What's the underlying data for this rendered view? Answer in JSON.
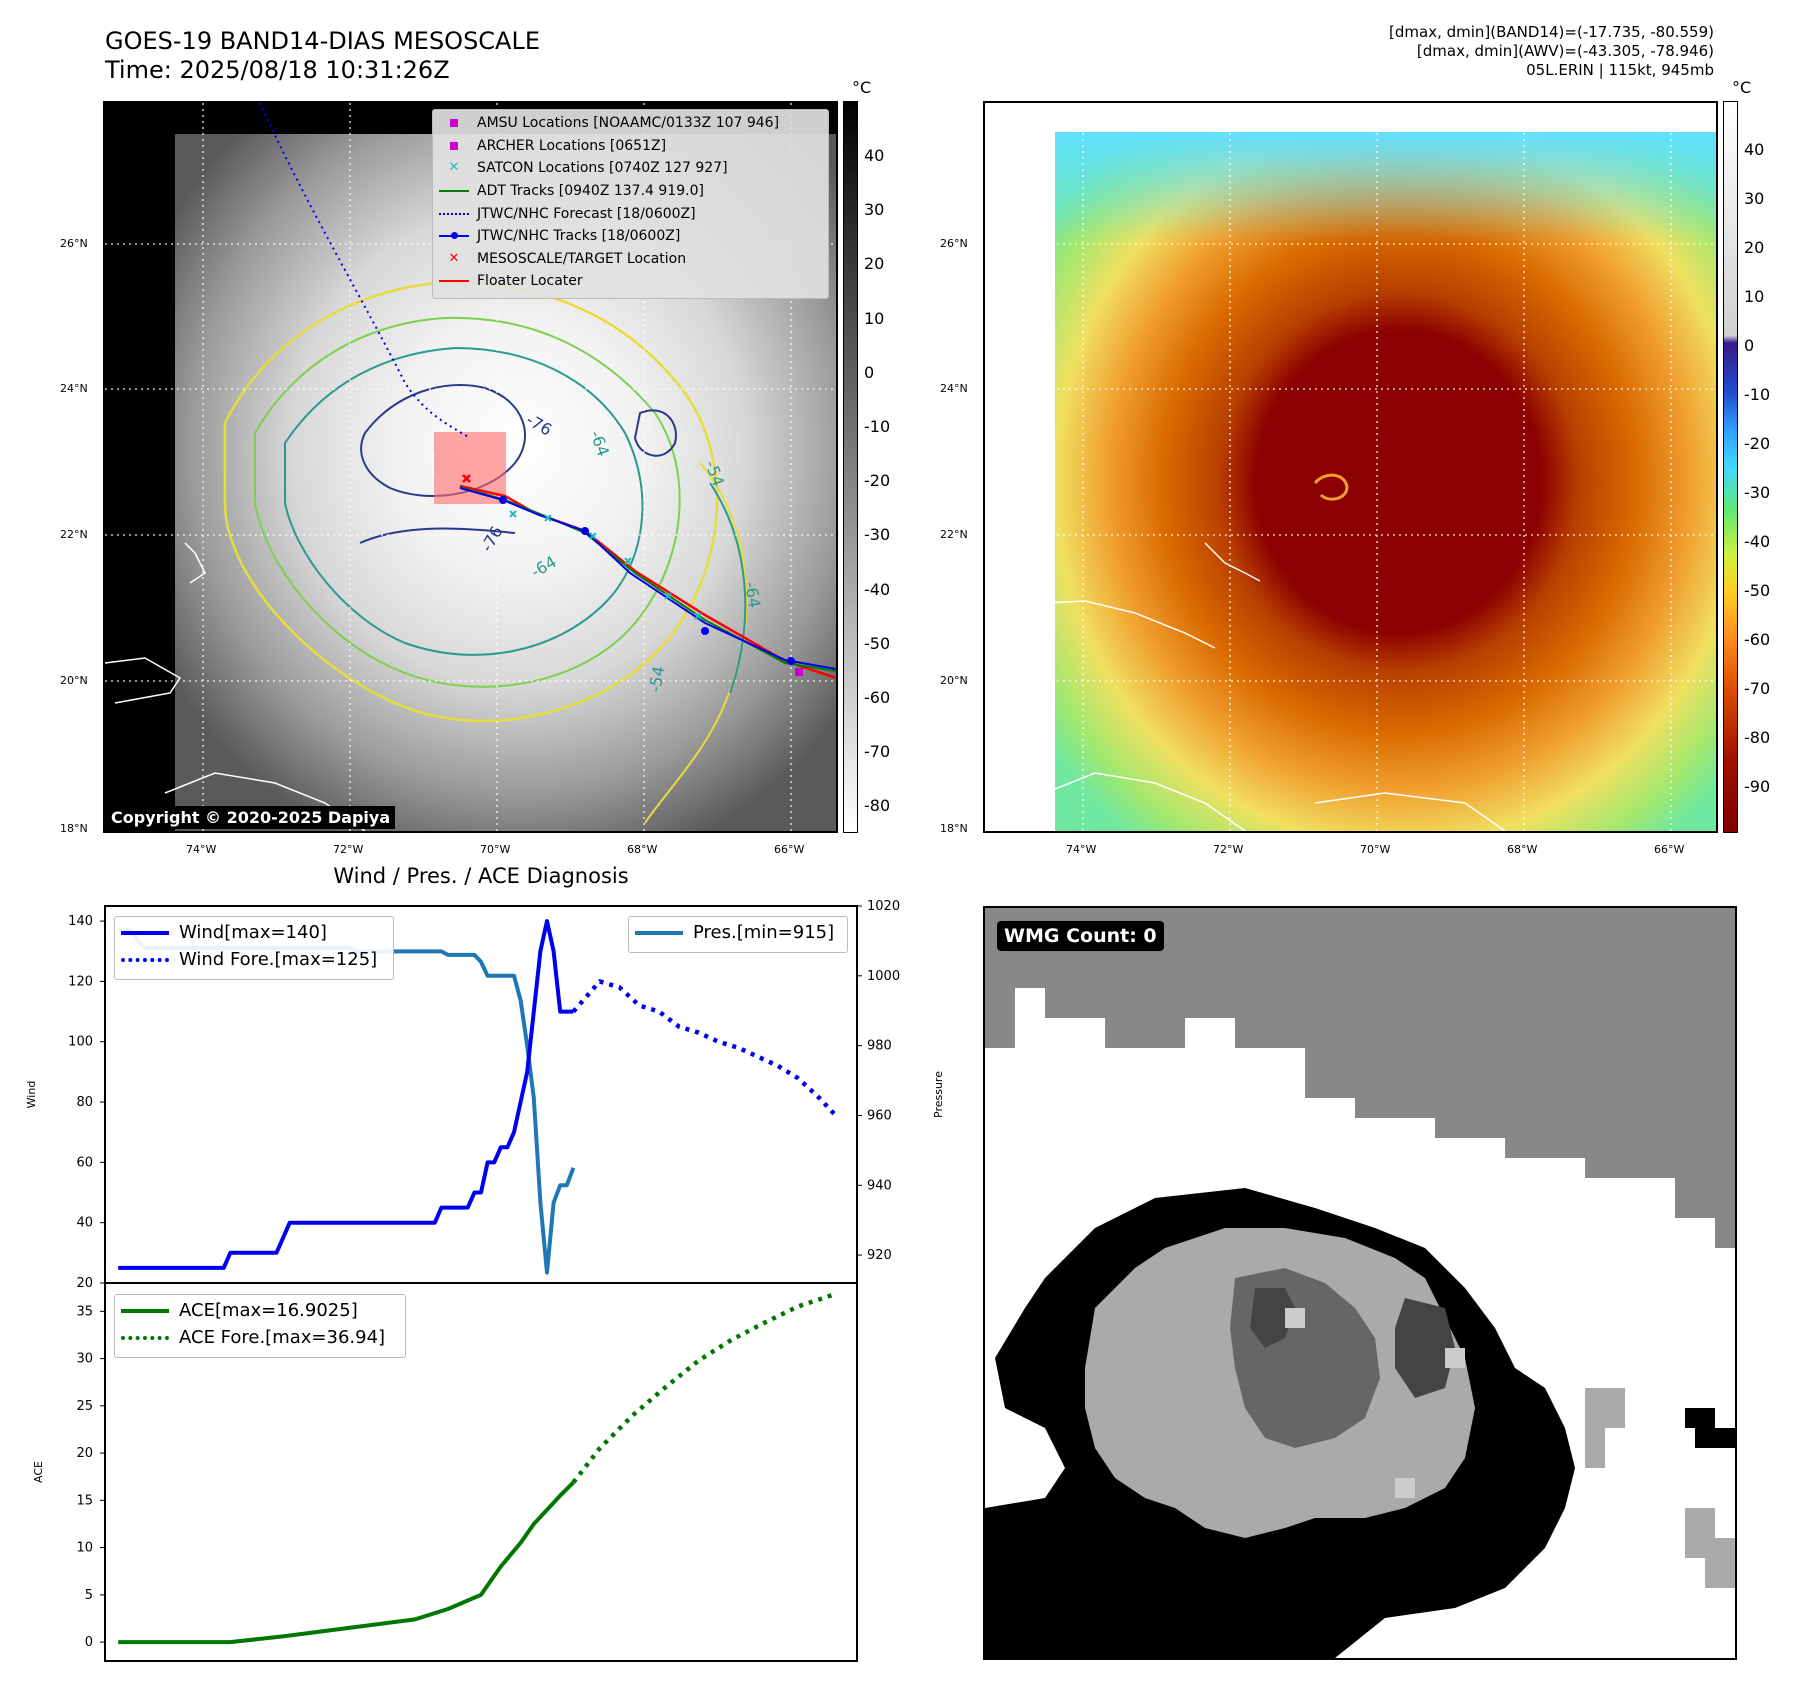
{
  "header": {
    "title_line1": "GOES-19 BAND14-DIAS MESOSCALE",
    "title_line2": "Time: 2025/08/18 10:31:26Z",
    "info_line1": "[dmax, dmin](BAND14)=(-17.735, -80.559)",
    "info_line2": "[dmax, dmin](AWV)=(-43.305, -78.946)",
    "info_line3": "05L.ERIN | 115kt, 945mb"
  },
  "map": {
    "lon_ticks": [
      "74°W",
      "72°W",
      "70°W",
      "68°W",
      "66°W"
    ],
    "lat_ticks": [
      "26°N",
      "24°N",
      "22°N",
      "20°N",
      "18°N"
    ],
    "contour_labels": [
      "-76",
      "-64",
      "-54",
      "-76",
      "-64",
      "-54",
      "-64"
    ],
    "copyright": "Copyright © 2020-2025 Dapiya",
    "colorbar_unit": "°C",
    "legend": [
      {
        "label": "AMSU Locations [NOAAMC/0133Z 107 946]",
        "color": "#cc00cc",
        "symbol": "square"
      },
      {
        "label": "ARCHER Locations [0651Z]",
        "color": "#cc00cc",
        "symbol": "square"
      },
      {
        "label": "SATCON Locations [0740Z 127 927]",
        "color": "#22bbbb",
        "symbol": "x"
      },
      {
        "label": "ADT Tracks [0940Z 137.4 919.0]",
        "color": "#008000",
        "symbol": "line"
      },
      {
        "label": "JTWC/NHC Forecast [18/0600Z]",
        "color": "#0000ee",
        "symbol": "dotted"
      },
      {
        "label": "JTWC/NHC Tracks [18/0600Z]",
        "color": "#0000ee",
        "symbol": "line-dot"
      },
      {
        "label": "MESOSCALE/TARGET Location",
        "color": "#ff0000",
        "symbol": "x"
      },
      {
        "label": "Floater Locater",
        "color": "#ff0000",
        "symbol": "line"
      }
    ],
    "gray_colorbar_ticks": [
      40,
      30,
      20,
      10,
      0,
      -10,
      -20,
      -30,
      -40,
      -50,
      -60,
      -70,
      -80
    ],
    "color_colorbar_ticks": [
      40,
      30,
      20,
      10,
      0,
      -10,
      -20,
      -30,
      -40,
      -50,
      -60,
      -70,
      -80,
      -90
    ]
  },
  "diagnosis_title": "Wind / Pres. / ACE Diagnosis",
  "wmg_label": "WMG Count: 0",
  "chart_data": [
    {
      "type": "line",
      "title": "Wind / Pres. / ACE Diagnosis",
      "ylabel": "Wind",
      "y2label": "Pressure",
      "ylim": [
        20,
        145
      ],
      "y2lim": [
        912,
        1020
      ],
      "yticks": [
        20,
        40,
        60,
        80,
        100,
        120,
        140
      ],
      "y2ticks": [
        920,
        940,
        960,
        980,
        1000,
        1020
      ],
      "series": [
        {
          "name": "Wind[max=140]",
          "axis": "left",
          "style": "solid",
          "color": "#0000ee",
          "x": [
            0,
            1,
            2,
            3,
            4,
            5,
            6,
            7,
            8,
            9,
            10,
            11,
            12,
            13,
            14,
            15,
            16,
            17,
            18,
            19,
            20,
            21,
            22,
            23,
            24,
            25,
            26,
            27,
            28,
            29,
            30,
            31,
            32,
            33,
            34,
            35,
            36,
            37,
            38,
            39,
            40,
            41,
            42,
            43,
            44,
            45,
            46,
            47,
            48,
            49,
            50,
            51,
            52,
            53,
            54,
            55,
            56,
            57,
            58,
            59,
            60,
            61,
            62,
            63,
            64,
            65,
            66,
            67,
            68,
            69
          ],
          "values": [
            25,
            25,
            25,
            25,
            25,
            25,
            25,
            25,
            25,
            25,
            25,
            25,
            25,
            25,
            25,
            25,
            25,
            30,
            30,
            30,
            30,
            30,
            30,
            30,
            30,
            35,
            40,
            40,
            40,
            40,
            40,
            40,
            40,
            40,
            40,
            40,
            40,
            40,
            40,
            40,
            40,
            40,
            40,
            40,
            40,
            40,
            40,
            40,
            40,
            45,
            45,
            45,
            45,
            45,
            50,
            50,
            60,
            60,
            65,
            65,
            70,
            80,
            90,
            110,
            130,
            140,
            130,
            110,
            110,
            110
          ]
        },
        {
          "name": "Wind Fore.[max=125]",
          "axis": "left",
          "style": "dotted",
          "color": "#0000ee",
          "x": [
            69,
            71,
            73,
            76,
            79,
            82,
            85,
            88,
            91,
            94,
            97,
            100,
            103,
            106,
            109
          ],
          "values": [
            110,
            115,
            120,
            118,
            112,
            110,
            105,
            103,
            100,
            98,
            95,
            92,
            88,
            82,
            75
          ]
        },
        {
          "name": "Pres.[min=915]",
          "axis": "right",
          "style": "solid",
          "color": "#1f77b4",
          "x": [
            0,
            1,
            2,
            3,
            4,
            5,
            6,
            7,
            8,
            9,
            10,
            11,
            12,
            13,
            14,
            15,
            16,
            17,
            18,
            19,
            20,
            21,
            22,
            23,
            24,
            25,
            26,
            27,
            28,
            29,
            30,
            31,
            32,
            33,
            34,
            35,
            36,
            37,
            38,
            39,
            40,
            41,
            42,
            43,
            44,
            45,
            46,
            47,
            48,
            49,
            50,
            51,
            52,
            53,
            54,
            55,
            56,
            57,
            58,
            59,
            60,
            61,
            62,
            63,
            64,
            65,
            66,
            67,
            68,
            69
          ],
          "values": [
            1013,
            1013,
            1013,
            1010,
            1008,
            1008,
            1008,
            1008,
            1008,
            1008,
            1008,
            1008,
            1008,
            1008,
            1008,
            1008,
            1008,
            1008,
            1008,
            1008,
            1008,
            1008,
            1008,
            1008,
            1008,
            1008,
            1008,
            1008,
            1008,
            1008,
            1008,
            1008,
            1008,
            1008,
            1008,
            1008,
            1007,
            1007,
            1007,
            1007,
            1007,
            1007,
            1007,
            1007,
            1007,
            1007,
            1007,
            1007,
            1007,
            1007,
            1006,
            1006,
            1006,
            1006,
            1006,
            1004,
            1000,
            1000,
            1000,
            1000,
            1000,
            993,
            980,
            965,
            935,
            915,
            935,
            940,
            940,
            945
          ]
        }
      ]
    },
    {
      "type": "line",
      "ylabel": "ACE",
      "ylim": [
        -2,
        38
      ],
      "yticks": [
        0,
        5,
        10,
        15,
        20,
        25,
        30,
        35
      ],
      "series": [
        {
          "name": "ACE[max=16.9025]",
          "style": "solid",
          "color": "#007700",
          "x": [
            0,
            17,
            25,
            35,
            45,
            50,
            55,
            58,
            61,
            63,
            65,
            67,
            69
          ],
          "values": [
            0,
            0,
            0.6,
            1.5,
            2.4,
            3.5,
            5,
            8,
            10.5,
            12.5,
            14,
            15.5,
            16.9
          ]
        },
        {
          "name": "ACE Fore.[max=36.94]",
          "style": "dotted",
          "color": "#007700",
          "x": [
            69,
            73,
            78,
            83,
            88,
            93,
            98,
            103,
            109
          ],
          "values": [
            16.9,
            20.5,
            24,
            27,
            29.8,
            32,
            33.8,
            35.5,
            36.9
          ]
        }
      ]
    }
  ]
}
